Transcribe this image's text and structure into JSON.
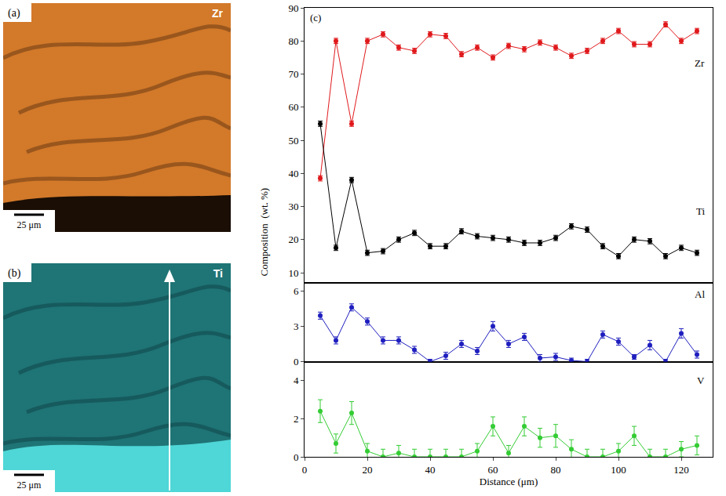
{
  "maps": [
    {
      "label": "(a)",
      "element": "Zr",
      "scale_bar": "25 μm",
      "color": "#d2792a"
    },
    {
      "label": "(b)",
      "element": "Ti",
      "scale_bar": "25 μm",
      "color": "#1f7475"
    }
  ],
  "chart_data": {
    "type": "line",
    "panel_label": "(c)",
    "x_label": "Distance (μm)",
    "y_label": "Composition  (wt. %)",
    "marker": "circle",
    "x": [
      5,
      10,
      15,
      20,
      25,
      30,
      35,
      40,
      45,
      50,
      55,
      60,
      65,
      70,
      75,
      80,
      85,
      90,
      95,
      100,
      105,
      110,
      115,
      120,
      125
    ],
    "xlim": [
      0,
      130
    ],
    "xticks": [
      0,
      20,
      40,
      60,
      80,
      100,
      120
    ],
    "panels": [
      {
        "ylim": [
          7,
          90
        ],
        "yticks": [
          10,
          20,
          30,
          40,
          50,
          60,
          70,
          80,
          90
        ],
        "series": [
          {
            "name": "Zr",
            "color": "#e0191c",
            "values": [
              38.5,
              80,
              55,
              80,
              82,
              78,
              77,
              82,
              81.5,
              76,
              78,
              75,
              78.5,
              77.5,
              79.5,
              78,
              75.5,
              77,
              80,
              83,
              79,
              79,
              85,
              80,
              83
            ],
            "errors": [
              0.8,
              0.8,
              0.8,
              0.8,
              0.8,
              0.8,
              0.8,
              0.8,
              0.8,
              0.8,
              0.8,
              0.8,
              0.8,
              0.8,
              0.8,
              0.8,
              0.8,
              0.8,
              0.8,
              0.8,
              0.8,
              0.8,
              0.8,
              0.8,
              0.8
            ]
          },
          {
            "name": "Ti",
            "color": "#000000",
            "values": [
              55,
              17.5,
              38,
              16,
              16.5,
              20,
              22,
              18,
              18,
              22.5,
              21,
              20.5,
              20,
              19,
              19,
              20.5,
              24,
              23,
              18,
              15,
              20,
              19.5,
              15,
              17.5,
              16
            ],
            "errors": [
              0.8,
              0.8,
              0.8,
              0.8,
              0.8,
              0.8,
              0.8,
              0.8,
              0.8,
              0.8,
              0.8,
              0.8,
              0.8,
              0.8,
              0.8,
              0.8,
              0.8,
              0.8,
              0.8,
              0.8,
              0.8,
              0.8,
              0.8,
              0.8,
              0.8
            ]
          }
        ]
      },
      {
        "ylim": [
          0,
          6.7
        ],
        "yticks": [
          0,
          3,
          6
        ],
        "series": [
          {
            "name": "Al",
            "color": "#1f1fbf",
            "values": [
              3.9,
              1.8,
              4.6,
              3.4,
              1.8,
              1.8,
              1.0,
              0,
              0.5,
              1.5,
              0.9,
              3.0,
              1.5,
              2.1,
              0.3,
              0.4,
              0.1,
              0,
              2.3,
              1.7,
              0.4,
              1.4,
              0,
              2.4,
              0.6
            ],
            "errors": [
              0.3,
              0.3,
              0.3,
              0.3,
              0.3,
              0.3,
              0.3,
              0.2,
              0.3,
              0.3,
              0.3,
              0.4,
              0.3,
              0.3,
              0.3,
              0.3,
              0.2,
              0.2,
              0.3,
              0.3,
              0.2,
              0.4,
              0.2,
              0.4,
              0.3
            ]
          }
        ]
      },
      {
        "ylim": [
          0,
          5
        ],
        "yticks": [
          0,
          2,
          4
        ],
        "series": [
          {
            "name": "V",
            "color": "#33cc33",
            "values": [
              2.4,
              0.7,
              2.3,
              0.3,
              0,
              0.2,
              0,
              0,
              0,
              0,
              0.3,
              1.6,
              0.2,
              1.6,
              1.0,
              1.1,
              0.4,
              0,
              0,
              0.3,
              1.1,
              0,
              0,
              0.4,
              0.6
            ],
            "errors": [
              0.6,
              0.5,
              0.6,
              0.4,
              0.4,
              0.4,
              0.4,
              0.4,
              0.4,
              0.4,
              0.4,
              0.5,
              0.4,
              0.5,
              0.5,
              0.6,
              0.5,
              0.4,
              0.4,
              0.4,
              0.5,
              0.4,
              0.4,
              0.4,
              0.5
            ]
          }
        ]
      }
    ]
  }
}
